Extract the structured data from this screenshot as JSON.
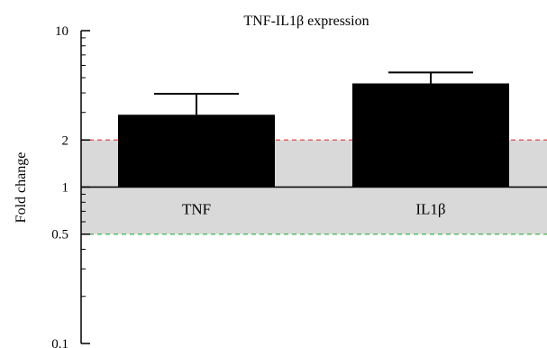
{
  "chart_data": {
    "type": "bar",
    "title": "TNF-IL1β expression",
    "ylabel": "Fold change",
    "xlabel": "",
    "y_scale": "log",
    "ylim": [
      0.1,
      10
    ],
    "y_ticks": [
      0.1,
      0.5,
      1,
      2,
      10
    ],
    "y_tick_labels": [
      "0.1",
      "0.5",
      "1",
      "2",
      "10"
    ],
    "categories": [
      "TNF",
      "IL1β"
    ],
    "values": [
      2.9,
      4.6
    ],
    "error_upper": [
      3.95,
      5.4
    ],
    "baseline": 1,
    "shaded_band": [
      0.5,
      2
    ],
    "reference_lines": [
      {
        "value": 2,
        "color": "#e8414a",
        "style": "dashed"
      },
      {
        "value": 0.5,
        "color": "#3cb54a",
        "style": "dashed"
      }
    ],
    "colors": {
      "bar": "#000000",
      "band": "#d9d9d9",
      "axis": "#000000"
    },
    "grid": false,
    "legend": "none"
  }
}
